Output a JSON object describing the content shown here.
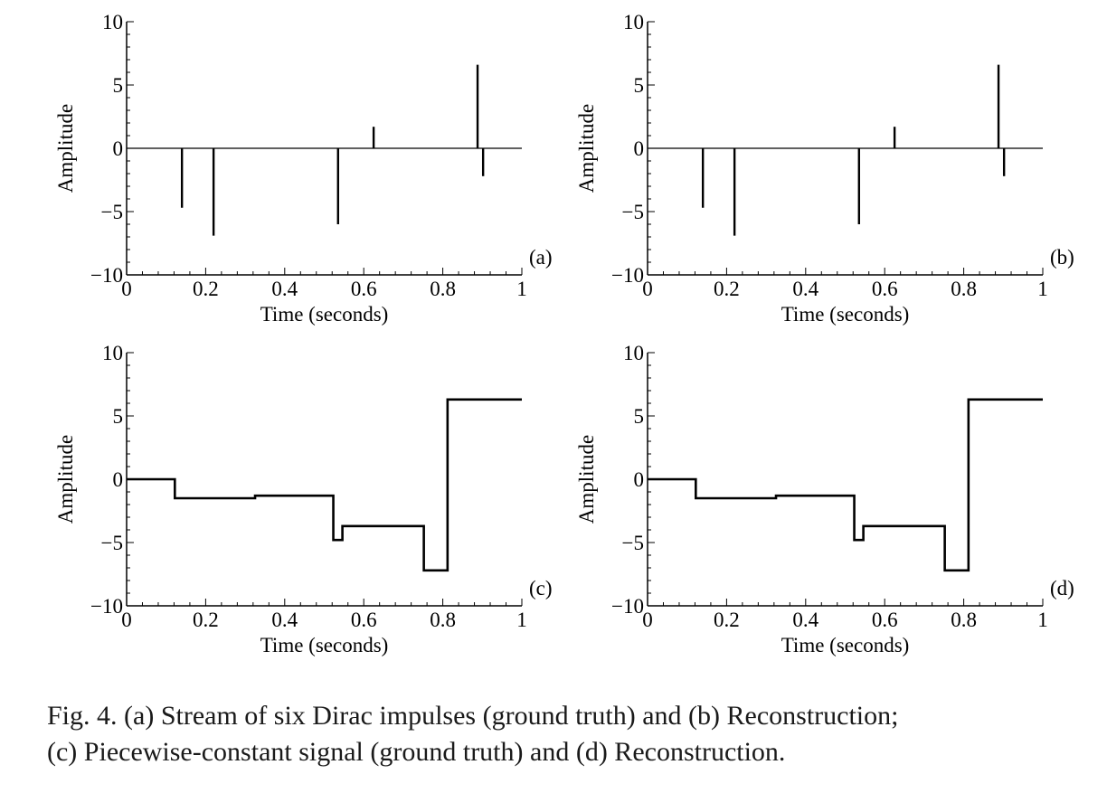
{
  "figure": {
    "caption_line1": "Fig. 4.   (a) Stream of six Dirac impulses (ground truth) and (b) Reconstruction;",
    "caption_line2": "(c) Piecewise-constant signal (ground truth) and (d) Reconstruction."
  },
  "chart_data": [
    {
      "type": "stem",
      "panel_label": "(a)",
      "xlabel": "Time (seconds)",
      "ylabel": "Amplitude",
      "xlim": [
        0,
        1
      ],
      "ylim": [
        -10,
        10
      ],
      "xticks": [
        0,
        0.2,
        0.4,
        0.6,
        0.8,
        1
      ],
      "xtick_labels": [
        "0",
        "0.2",
        "0.4",
        "0.6",
        "0.8",
        "1"
      ],
      "yticks": [
        -10,
        -5,
        0,
        5,
        10
      ],
      "ytick_labels": [
        "−10",
        "−5",
        "0",
        "5",
        "10"
      ],
      "baseline": 0,
      "x": [
        0.14,
        0.22,
        0.535,
        0.625,
        0.888,
        0.902
      ],
      "y": [
        -4.7,
        -6.9,
        -6.0,
        1.7,
        6.6,
        -2.2
      ]
    },
    {
      "type": "stem",
      "panel_label": "(b)",
      "xlabel": "Time (seconds)",
      "ylabel": "Amplitude",
      "xlim": [
        0,
        1
      ],
      "ylim": [
        -10,
        10
      ],
      "xticks": [
        0,
        0.2,
        0.4,
        0.6,
        0.8,
        1
      ],
      "xtick_labels": [
        "0",
        "0.2",
        "0.4",
        "0.6",
        "0.8",
        "1"
      ],
      "yticks": [
        -10,
        -5,
        0,
        5,
        10
      ],
      "ytick_labels": [
        "−10",
        "−5",
        "0",
        "5",
        "10"
      ],
      "baseline": 0,
      "x": [
        0.14,
        0.22,
        0.535,
        0.625,
        0.888,
        0.902
      ],
      "y": [
        -4.7,
        -6.9,
        -6.0,
        1.7,
        6.6,
        -2.2
      ]
    },
    {
      "type": "step",
      "panel_label": "(c)",
      "xlabel": "Time (seconds)",
      "ylabel": "Amplitude",
      "xlim": [
        0,
        1
      ],
      "ylim": [
        -10,
        10
      ],
      "xticks": [
        0,
        0.2,
        0.4,
        0.6,
        0.8,
        1
      ],
      "xtick_labels": [
        "0",
        "0.2",
        "0.4",
        "0.6",
        "0.8",
        "1"
      ],
      "yticks": [
        -10,
        -5,
        0,
        5,
        10
      ],
      "ytick_labels": [
        "−10",
        "−5",
        "0",
        "5",
        "10"
      ],
      "breakpoints": [
        0,
        0.122,
        0.325,
        0.523,
        0.546,
        0.752,
        0.812,
        1
      ],
      "levels": [
        0,
        -1.5,
        -1.3,
        -4.8,
        -3.7,
        -7.2,
        6.3
      ]
    },
    {
      "type": "step",
      "panel_label": "(d)",
      "xlabel": "Time (seconds)",
      "ylabel": "Amplitude",
      "xlim": [
        0,
        1
      ],
      "ylim": [
        -10,
        10
      ],
      "xticks": [
        0,
        0.2,
        0.4,
        0.6,
        0.8,
        1
      ],
      "xtick_labels": [
        "0",
        "0.2",
        "0.4",
        "0.6",
        "0.8",
        "1"
      ],
      "yticks": [
        -10,
        -5,
        0,
        5,
        10
      ],
      "ytick_labels": [
        "−10",
        "−5",
        "0",
        "5",
        "10"
      ],
      "breakpoints": [
        0,
        0.122,
        0.325,
        0.523,
        0.546,
        0.752,
        0.812,
        1
      ],
      "levels": [
        0,
        -1.5,
        -1.3,
        -4.8,
        -3.7,
        -7.2,
        6.3
      ]
    }
  ]
}
